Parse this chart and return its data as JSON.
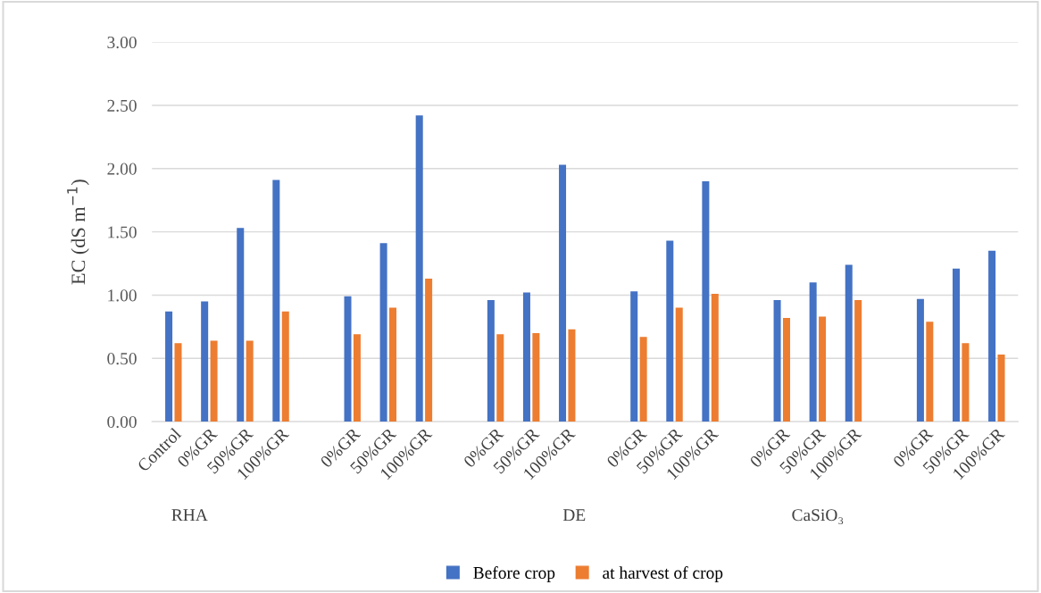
{
  "chart_data": {
    "type": "bar",
    "ylabel": "EC (dS m$^{−1}$)",
    "categories": [
      "Control",
      "0%GR",
      "50%GR",
      "100%GR",
      null,
      "0%GR",
      "50%GR",
      "100%GR",
      null,
      "0%GR",
      "50%GR",
      "100%GR",
      null,
      "0%GR",
      "50%GR",
      "100%GR",
      null,
      "0%GR",
      "50%GR",
      "100%GR",
      null,
      "0%GR",
      "50%GR",
      "100%GR"
    ],
    "series": [
      {
        "name": "Before crop",
        "color": "#4472c4",
        "values": [
          0.87,
          0.95,
          1.53,
          1.91,
          null,
          0.99,
          1.41,
          2.42,
          null,
          0.96,
          1.02,
          2.03,
          null,
          1.03,
          1.43,
          1.9,
          null,
          0.96,
          1.1,
          1.24,
          null,
          0.97,
          1.21,
          1.35
        ]
      },
      {
        "name": "at harvest of crop",
        "color": "#ed7d31",
        "values": [
          0.62,
          0.64,
          0.64,
          0.87,
          null,
          0.69,
          0.9,
          1.13,
          null,
          0.69,
          0.7,
          0.73,
          null,
          0.67,
          0.9,
          1.01,
          null,
          0.82,
          0.83,
          0.96,
          null,
          0.79,
          0.62,
          0.53
        ]
      }
    ],
    "ylim": [
      0,
      3
    ],
    "yticks": [
      {
        "value": 0,
        "label": "0.00"
      },
      {
        "value": 0.5,
        "label": "0.50"
      },
      {
        "value": 1,
        "label": "1.00"
      },
      {
        "value": 1.5,
        "label": "1.50"
      },
      {
        "value": 2,
        "label": "2.00"
      },
      {
        "value": 2.5,
        "label": "2.50"
      },
      {
        "value": 3,
        "label": "3.00"
      }
    ],
    "grid": "y",
    "legend": "bottom",
    "annotations": [
      "RHA",
      "DE",
      "CaSiO₃"
    ]
  }
}
